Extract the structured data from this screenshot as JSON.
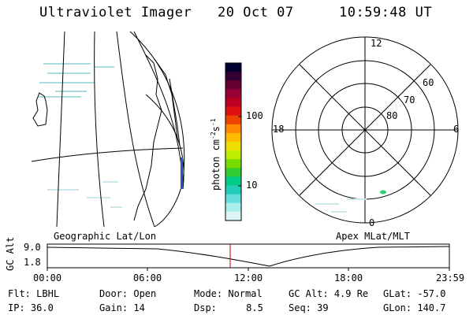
{
  "header": {
    "instrument": "Ultraviolet Imager",
    "date": "20 Oct 07",
    "time": "10:59:48 UT"
  },
  "colorbar": {
    "label": "photon cm",
    "label_sup1": "-2",
    "label_mid": "s",
    "label_sup2": "-1",
    "ticks": [
      "100",
      "10"
    ],
    "colors": [
      "#000033",
      "#330033",
      "#660033",
      "#990033",
      "#bb0022",
      "#dd1111",
      "#ee4400",
      "#ff8800",
      "#ffbb00",
      "#eedd00",
      "#bbee00",
      "#77dd00",
      "#33cc33",
      "#00cc88",
      "#22ccbb",
      "#66dddd",
      "#aaeeee",
      "#ddf5f5"
    ]
  },
  "maps": {
    "left_label": "Geographic Lat/Lon",
    "right_label": "Apex MLat/MLT",
    "polar_mlt": {
      "top": "12",
      "left": "18",
      "right": "6",
      "bottom": "0"
    },
    "polar_lat": [
      "60",
      "70",
      "80"
    ]
  },
  "altitude_plot": {
    "axis_label": "GC Alt",
    "y_ticks": [
      "9.0",
      "1.8"
    ],
    "x_ticks": [
      "00:00",
      "06:00",
      "12:00",
      "18:00",
      "23:59"
    ],
    "current_time_marker_color": "#cc0000"
  },
  "footer": {
    "col1": [
      {
        "k": "Flt:",
        "v": "LBHL"
      },
      {
        "k": "IP:",
        "v": "36.0"
      }
    ],
    "col2": [
      {
        "k": "Door:",
        "v": "Open"
      },
      {
        "k": "Gain:",
        "v": "14"
      }
    ],
    "col3": [
      {
        "k": "Mode:",
        "v": "Normal"
      },
      {
        "k": "Dsp:",
        "v": "8.5"
      }
    ],
    "col4": [
      {
        "k": "GC Alt:",
        "v": "4.9 Re"
      },
      {
        "k": "Seq:",
        "v": "39"
      }
    ],
    "col5": [
      {
        "k": "GLat:",
        "v": "-57.0"
      },
      {
        "k": "GLon:",
        "v": "140.7"
      }
    ]
  }
}
